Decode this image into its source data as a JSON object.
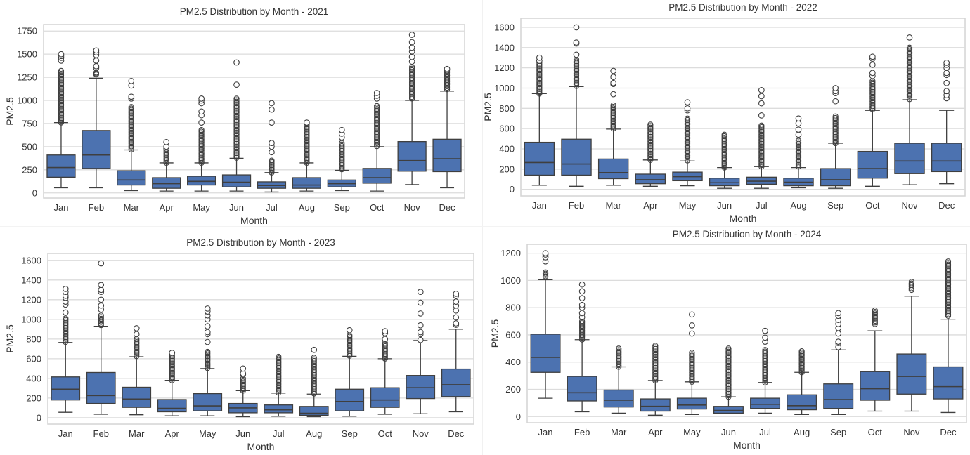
{
  "figure": {
    "box_fill": "#4c72b0",
    "edge_color": "#3f3f3f",
    "grid_color": "#dcdcdc",
    "frame_color": "#d4d4d4",
    "text_color": "#333333"
  },
  "chart_data": [
    {
      "type": "box",
      "title": "PM2.5 Distribution by Month - 2021",
      "xlabel": "Month",
      "ylabel": "PM2.5",
      "ylim": [
        -55,
        1820
      ],
      "yticks": [
        0,
        250,
        500,
        750,
        1000,
        1250,
        1500,
        1750
      ],
      "ytick_labels": [
        "0",
        "250",
        "500",
        "750",
        "1000",
        "1250",
        "1500",
        "1750"
      ],
      "grid": true,
      "categories": [
        "Jan",
        "Feb",
        "Mar",
        "Apr",
        "May",
        "Jun",
        "Jul",
        "Aug",
        "Sep",
        "Oct",
        "Nov",
        "Dec"
      ],
      "boxes": [
        {
          "whislo": 55,
          "q1": 170,
          "med": 275,
          "q3": 410,
          "whishi": 760,
          "fliers_dense": [
            760,
            1320
          ],
          "fliers": [
            1430,
            1460,
            1480,
            1500
          ]
        },
        {
          "whislo": 55,
          "q1": 265,
          "med": 410,
          "q3": 675,
          "whishi": 1240,
          "fliers_dense": [
            1280,
            1300
          ],
          "fliers": [
            1350,
            1370,
            1430,
            1490,
            1520,
            1540
          ]
        },
        {
          "whislo": 25,
          "q1": 85,
          "med": 140,
          "q3": 240,
          "whishi": 465,
          "fliers_dense": [
            470,
            930
          ],
          "fliers": [
            1020,
            1040,
            1160,
            1210
          ]
        },
        {
          "whislo": 20,
          "q1": 50,
          "med": 100,
          "q3": 165,
          "whishi": 325,
          "fliers_dense": [
            325,
            460
          ],
          "fliers": [
            480,
            500,
            550
          ]
        },
        {
          "whislo": 20,
          "q1": 85,
          "med": 125,
          "q3": 180,
          "whishi": 325,
          "fliers_dense": [
            325,
            680
          ],
          "fliers": [
            760,
            840,
            880,
            970,
            1000,
            1020
          ]
        },
        {
          "whislo": 20,
          "q1": 65,
          "med": 115,
          "q3": 195,
          "whishi": 375,
          "fliers_dense": [
            380,
            1020
          ],
          "fliers": [
            1170,
            1410
          ]
        },
        {
          "whislo": 10,
          "q1": 50,
          "med": 80,
          "q3": 120,
          "whishi": 220,
          "fliers_dense": [
            220,
            350
          ],
          "fliers": [
            440,
            500,
            540,
            760,
            900,
            970
          ]
        },
        {
          "whislo": 20,
          "q1": 50,
          "med": 85,
          "q3": 165,
          "whishi": 325,
          "fliers_dense": [
            325,
            740
          ],
          "fliers": [
            760
          ]
        },
        {
          "whislo": 25,
          "q1": 65,
          "med": 100,
          "q3": 140,
          "whishi": 245,
          "fliers_dense": [
            255,
            540
          ],
          "fliers": [
            600,
            640,
            680
          ]
        },
        {
          "whislo": 20,
          "q1": 105,
          "med": 165,
          "q3": 265,
          "whishi": 500,
          "fliers_dense": [
            505,
            940
          ],
          "fliers": [
            1020,
            1050,
            1080
          ]
        },
        {
          "whislo": 90,
          "q1": 235,
          "med": 350,
          "q3": 555,
          "whishi": 1000,
          "fliers_dense": [
            1020,
            1360
          ],
          "fliers": [
            1420,
            1470,
            1530,
            1570,
            1630,
            1710
          ]
        },
        {
          "whislo": 55,
          "q1": 230,
          "med": 370,
          "q3": 580,
          "whishi": 1100,
          "fliers_dense": [
            1120,
            1320
          ],
          "fliers": [
            1340
          ]
        }
      ]
    },
    {
      "type": "box",
      "title": "PM2.5 Distribution by Month - 2022",
      "xlabel": "Month",
      "ylabel": "PM2.5",
      "ylim": [
        -65,
        1690
      ],
      "yticks": [
        0,
        200,
        400,
        600,
        800,
        1000,
        1200,
        1400,
        1600
      ],
      "ytick_labels": [
        "0",
        "200",
        "400",
        "600",
        "800",
        "1000",
        "1200",
        "1400",
        "1600"
      ],
      "grid": true,
      "categories": [
        "Jan",
        "Feb",
        "Mar",
        "Apr",
        "May",
        "Jun",
        "Jul",
        "Aug",
        "Sep",
        "Oct",
        "Nov",
        "Dec"
      ],
      "boxes": [
        {
          "whislo": 40,
          "q1": 140,
          "med": 265,
          "q3": 465,
          "whishi": 945,
          "fliers_dense": [
            945,
            1250
          ],
          "fliers": [
            1270,
            1300
          ]
        },
        {
          "whislo": 30,
          "q1": 140,
          "med": 250,
          "q3": 495,
          "whishi": 1015,
          "fliers_dense": [
            1020,
            1280
          ],
          "fliers": [
            1330,
            1440,
            1450,
            1600
          ]
        },
        {
          "whislo": 40,
          "q1": 105,
          "med": 165,
          "q3": 300,
          "whishi": 595,
          "fliers_dense": [
            600,
            830
          ],
          "fliers": [
            940,
            1040,
            1050,
            1110,
            1170
          ]
        },
        {
          "whislo": 30,
          "q1": 55,
          "med": 95,
          "q3": 150,
          "whishi": 290,
          "fliers_dense": [
            290,
            640
          ],
          "fliers": []
        },
        {
          "whislo": 35,
          "q1": 85,
          "med": 125,
          "q3": 170,
          "whishi": 280,
          "fliers_dense": [
            285,
            700
          ],
          "fliers": [
            780,
            800,
            860
          ]
        },
        {
          "whislo": 10,
          "q1": 35,
          "med": 65,
          "q3": 110,
          "whishi": 215,
          "fliers_dense": [
            215,
            540
          ],
          "fliers": []
        },
        {
          "whislo": 10,
          "q1": 50,
          "med": 80,
          "q3": 120,
          "whishi": 225,
          "fliers_dense": [
            225,
            630
          ],
          "fliers": [
            730,
            850,
            920,
            980
          ]
        },
        {
          "whislo": 15,
          "q1": 35,
          "med": 70,
          "q3": 110,
          "whishi": 215,
          "fliers_dense": [
            225,
            480
          ],
          "fliers": [
            540,
            590,
            650,
            700
          ]
        },
        {
          "whislo": 10,
          "q1": 35,
          "med": 95,
          "q3": 205,
          "whishi": 455,
          "fliers_dense": [
            455,
            720
          ],
          "fliers": [
            870,
            950,
            970,
            1000
          ]
        },
        {
          "whislo": 30,
          "q1": 110,
          "med": 205,
          "q3": 375,
          "whishi": 780,
          "fliers_dense": [
            790,
            1070
          ],
          "fliers": [
            1120,
            1150,
            1230,
            1290,
            1310
          ]
        },
        {
          "whislo": 45,
          "q1": 155,
          "med": 280,
          "q3": 455,
          "whishi": 885,
          "fliers_dense": [
            890,
            1400
          ],
          "fliers": [
            1500
          ]
        },
        {
          "whislo": 55,
          "q1": 175,
          "med": 280,
          "q3": 455,
          "whishi": 780,
          "fliers_dense": [],
          "fliers": [
            900,
            930,
            970,
            1050,
            1130,
            1150,
            1200,
            1230,
            1250
          ]
        }
      ]
    },
    {
      "type": "box",
      "title": "PM2.5 Distribution by Month - 2023",
      "xlabel": "Month",
      "ylabel": "PM2.5",
      "ylim": [
        -65,
        1670
      ],
      "yticks": [
        0,
        200,
        400,
        600,
        800,
        1000,
        1200,
        1400,
        1600
      ],
      "ytick_labels": [
        "0",
        "200",
        "400",
        "600",
        "800",
        "1000",
        "1200",
        "1400",
        "1600"
      ],
      "grid": true,
      "categories": [
        "Jan",
        "Feb",
        "Mar",
        "Apr",
        "May",
        "Jun",
        "Jul",
        "Aug",
        "Sep",
        "Oct",
        "Nov",
        "Dec"
      ],
      "boxes": [
        {
          "whislo": 55,
          "q1": 180,
          "med": 290,
          "q3": 415,
          "whishi": 765,
          "fliers_dense": [
            770,
            1010
          ],
          "fliers": [
            1070,
            1150,
            1180,
            1220,
            1240,
            1280,
            1310
          ]
        },
        {
          "whislo": 35,
          "q1": 145,
          "med": 225,
          "q3": 460,
          "whishi": 930,
          "fliers_dense": [
            940,
            1040
          ],
          "fliers": [
            1100,
            1140,
            1200,
            1280,
            1300,
            1350,
            1570
          ]
        },
        {
          "whislo": 30,
          "q1": 105,
          "med": 190,
          "q3": 310,
          "whishi": 620,
          "fliers_dense": [
            625,
            800
          ],
          "fliers": [
            850,
            910
          ]
        },
        {
          "whislo": 20,
          "q1": 60,
          "med": 95,
          "q3": 185,
          "whishi": 380,
          "fliers_dense": [
            380,
            640
          ],
          "fliers": [
            660
          ]
        },
        {
          "whislo": 20,
          "q1": 70,
          "med": 120,
          "q3": 245,
          "whishi": 500,
          "fliers_dense": [
            505,
            670
          ],
          "fliers": [
            770,
            850,
            870,
            930,
            1000,
            1040,
            1080,
            1110
          ]
        },
        {
          "whislo": 10,
          "q1": 50,
          "med": 100,
          "q3": 145,
          "whishi": 275,
          "fliers_dense": [
            275,
            400
          ],
          "fliers": [
            440,
            450,
            500
          ]
        },
        {
          "whislo": 15,
          "q1": 50,
          "med": 80,
          "q3": 130,
          "whishi": 250,
          "fliers_dense": [
            255,
            620
          ],
          "fliers": []
        },
        {
          "whislo": 10,
          "q1": 25,
          "med": 45,
          "q3": 115,
          "whishi": 240,
          "fliers_dense": [
            245,
            610
          ],
          "fliers": [
            690
          ]
        },
        {
          "whislo": 15,
          "q1": 70,
          "med": 165,
          "q3": 290,
          "whishi": 625,
          "fliers_dense": [
            630,
            840
          ],
          "fliers": [
            890
          ]
        },
        {
          "whislo": 35,
          "q1": 105,
          "med": 180,
          "q3": 305,
          "whishi": 600,
          "fliers_dense": [
            600,
            760
          ],
          "fliers": [
            800,
            860,
            880
          ]
        },
        {
          "whislo": 40,
          "q1": 195,
          "med": 305,
          "q3": 430,
          "whishi": 785,
          "fliers_dense": [],
          "fliers": [
            790,
            850,
            870,
            940,
            1060,
            1170,
            1280
          ]
        },
        {
          "whislo": 60,
          "q1": 215,
          "med": 335,
          "q3": 495,
          "whishi": 900,
          "fliers_dense": [],
          "fliers": [
            945,
            960,
            1020,
            1090,
            1140,
            1180,
            1240,
            1260
          ]
        }
      ]
    },
    {
      "type": "box",
      "title": "PM2.5 Distribution by Month - 2024",
      "xlabel": "Month",
      "ylabel": "PM2.5",
      "ylim": [
        -45,
        1265
      ],
      "yticks": [
        0,
        200,
        400,
        600,
        800,
        1000,
        1200
      ],
      "ytick_labels": [
        "0",
        "200",
        "400",
        "600",
        "800",
        "1000",
        "1200"
      ],
      "grid": true,
      "categories": [
        "Jan",
        "Feb",
        "Mar",
        "Apr",
        "May",
        "Jun",
        "Jul",
        "Aug",
        "Sep",
        "Oct",
        "Nov",
        "Dec"
      ],
      "boxes": [
        {
          "whislo": 135,
          "q1": 325,
          "med": 435,
          "q3": 605,
          "whishi": 1005,
          "fliers_dense": [
            1030,
            1060
          ],
          "fliers": [
            1140,
            1170,
            1190,
            1200
          ]
        },
        {
          "whislo": 35,
          "q1": 115,
          "med": 175,
          "q3": 295,
          "whishi": 565,
          "fliers_dense": [
            565,
            700
          ],
          "fliers": [
            730,
            760,
            800,
            820,
            870,
            920,
            970
          ]
        },
        {
          "whislo": 25,
          "q1": 70,
          "med": 120,
          "q3": 195,
          "whishi": 365,
          "fliers_dense": [
            365,
            500
          ],
          "fliers": []
        },
        {
          "whislo": 10,
          "q1": 40,
          "med": 75,
          "q3": 130,
          "whishi": 265,
          "fliers_dense": [
            265,
            520
          ],
          "fliers": []
        },
        {
          "whislo": 15,
          "q1": 55,
          "med": 85,
          "q3": 135,
          "whishi": 255,
          "fliers_dense": [
            255,
            470
          ],
          "fliers": [
            610,
            670,
            750
          ]
        },
        {
          "whislo": 20,
          "q1": 25,
          "med": 45,
          "q3": 75,
          "whishi": 145,
          "fliers_dense": [
            145,
            500
          ],
          "fliers": []
        },
        {
          "whislo": 25,
          "q1": 60,
          "med": 90,
          "q3": 135,
          "whishi": 250,
          "fliers_dense": [
            250,
            490
          ],
          "fliers": [
            550,
            580,
            630
          ]
        },
        {
          "whislo": 15,
          "q1": 50,
          "med": 80,
          "q3": 160,
          "whishi": 325,
          "fliers_dense": [
            325,
            480
          ],
          "fliers": []
        },
        {
          "whislo": 15,
          "q1": 60,
          "med": 125,
          "q3": 240,
          "whishi": 490,
          "fliers_dense": [],
          "fliers": [
            510,
            540,
            550,
            610,
            650,
            680,
            710,
            740,
            760
          ]
        },
        {
          "whislo": 40,
          "q1": 120,
          "med": 205,
          "q3": 330,
          "whishi": 630,
          "fliers_dense": [
            680,
            780
          ],
          "fliers": []
        },
        {
          "whislo": 40,
          "q1": 165,
          "med": 295,
          "q3": 460,
          "whishi": 885,
          "fliers_dense": [
            930,
            990
          ],
          "fliers": []
        },
        {
          "whislo": 30,
          "q1": 130,
          "med": 220,
          "q3": 365,
          "whishi": 715,
          "fliers_dense": [
            740,
            1140
          ],
          "fliers": []
        }
      ]
    }
  ]
}
